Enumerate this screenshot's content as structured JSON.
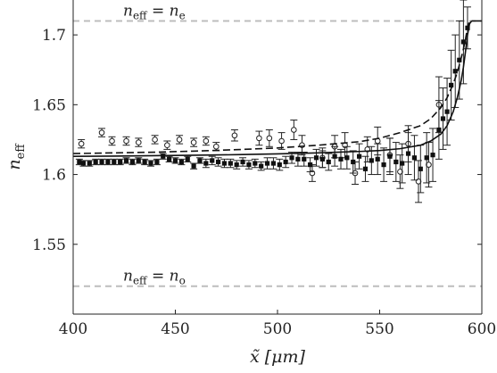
{
  "chart_data": {
    "type": "scatter",
    "title": "",
    "xlabel": "x̃ [μm]",
    "ylabel": "n_eff",
    "xlim": [
      400,
      600
    ],
    "ylim": [
      1.5,
      1.725
    ],
    "xticks": [
      "400",
      "450",
      "500",
      "550",
      "600"
    ],
    "yticks": [
      "1.55",
      "1.6",
      "1.65",
      "1.7"
    ],
    "grid": false,
    "annotations": [
      {
        "text_main": "n",
        "text_sub": "eff",
        "text_eq": " = ",
        "text_rhs": "n",
        "text_rhs_sub": "e",
        "y": 1.71
      },
      {
        "text_main": "n",
        "text_sub": "eff",
        "text_eq": " = ",
        "text_rhs": "n",
        "text_rhs_sub": "o",
        "y": 1.52
      }
    ],
    "reference_lines": [
      {
        "y": 1.71,
        "style": "dashed",
        "color": "#bdbdbd"
      },
      {
        "y": 1.52,
        "style": "dashed",
        "color": "#bdbdbd"
      }
    ],
    "series": [
      {
        "marker": "open-circle",
        "x": [
          404,
          414,
          419,
          426,
          432,
          440,
          446,
          452,
          459,
          465,
          470,
          479,
          491,
          496,
          502,
          508,
          512,
          517,
          522,
          528,
          533,
          538,
          544,
          549,
          555,
          560,
          564,
          569,
          574,
          579
        ],
        "y": [
          1.622,
          1.63,
          1.624,
          1.624,
          1.623,
          1.625,
          1.621,
          1.625,
          1.623,
          1.624,
          1.62,
          1.628,
          1.626,
          1.626,
          1.624,
          1.632,
          1.621,
          1.601,
          1.612,
          1.62,
          1.621,
          1.601,
          1.618,
          1.624,
          1.614,
          1.602,
          1.622,
          1.595,
          1.607,
          1.65
        ],
        "err": [
          0.003,
          0.003,
          0.003,
          0.003,
          0.003,
          0.003,
          0.003,
          0.003,
          0.003,
          0.003,
          0.003,
          0.004,
          0.005,
          0.006,
          0.006,
          0.007,
          0.007,
          0.006,
          0.007,
          0.008,
          0.009,
          0.008,
          0.009,
          0.01,
          0.012,
          0.012,
          0.013,
          0.015,
          0.016,
          0.02
        ]
      },
      {
        "marker": "filled-square",
        "x": [
          403,
          405,
          408,
          411,
          414,
          417,
          420,
          423,
          426,
          429,
          432,
          435,
          438,
          441,
          444,
          447,
          450,
          453,
          456,
          459,
          462,
          465,
          468,
          471,
          474,
          477,
          480,
          483,
          486,
          489,
          492,
          495,
          498,
          501,
          504,
          507,
          510,
          513,
          516,
          519,
          522,
          525,
          528,
          531,
          534,
          537,
          540,
          543,
          546,
          549,
          552,
          555,
          558,
          561,
          564,
          567,
          570,
          573,
          576,
          579,
          581,
          583,
          585,
          587,
          589,
          591,
          593
        ],
        "y": [
          1.609,
          1.608,
          1.608,
          1.609,
          1.609,
          1.609,
          1.609,
          1.609,
          1.61,
          1.609,
          1.61,
          1.609,
          1.608,
          1.609,
          1.613,
          1.611,
          1.61,
          1.609,
          1.611,
          1.606,
          1.61,
          1.608,
          1.61,
          1.609,
          1.608,
          1.608,
          1.607,
          1.609,
          1.607,
          1.608,
          1.606,
          1.608,
          1.608,
          1.607,
          1.609,
          1.612,
          1.611,
          1.611,
          1.607,
          1.612,
          1.611,
          1.609,
          1.613,
          1.611,
          1.612,
          1.609,
          1.613,
          1.604,
          1.61,
          1.611,
          1.607,
          1.613,
          1.609,
          1.608,
          1.615,
          1.612,
          1.604,
          1.612,
          1.614,
          1.632,
          1.64,
          1.645,
          1.664,
          1.674,
          1.682,
          1.695,
          1.705
        ],
        "err": [
          0.002,
          0.002,
          0.002,
          0.002,
          0.002,
          0.002,
          0.002,
          0.002,
          0.002,
          0.002,
          0.002,
          0.002,
          0.002,
          0.002,
          0.002,
          0.002,
          0.002,
          0.002,
          0.002,
          0.002,
          0.002,
          0.003,
          0.003,
          0.003,
          0.003,
          0.003,
          0.003,
          0.003,
          0.003,
          0.003,
          0.003,
          0.004,
          0.004,
          0.004,
          0.004,
          0.004,
          0.005,
          0.005,
          0.005,
          0.006,
          0.006,
          0.006,
          0.007,
          0.007,
          0.008,
          0.008,
          0.009,
          0.009,
          0.01,
          0.011,
          0.012,
          0.013,
          0.014,
          0.014,
          0.015,
          0.016,
          0.017,
          0.018,
          0.019,
          0.021,
          0.022,
          0.024,
          0.025,
          0.026,
          0.028,
          0.03,
          0.015
        ]
      },
      {
        "style": "solid",
        "x": [
          400,
          420,
          440,
          460,
          480,
          500,
          520,
          540,
          550,
          560,
          570,
          575,
          580,
          583,
          586,
          588,
          590,
          591,
          592,
          593,
          594,
          595
        ],
        "y": [
          1.613,
          1.6132,
          1.6135,
          1.6138,
          1.6142,
          1.6148,
          1.6155,
          1.6165,
          1.6172,
          1.6185,
          1.621,
          1.624,
          1.629,
          1.635,
          1.645,
          1.655,
          1.668,
          1.677,
          1.688,
          1.7,
          1.708,
          1.71
        ]
      },
      {
        "style": "dashed",
        "x": [
          400,
          420,
          440,
          460,
          480,
          500,
          520,
          540,
          550,
          560,
          570,
          575,
          580,
          583,
          586,
          588,
          590,
          591,
          592,
          593,
          594
        ],
        "y": [
          1.615,
          1.6155,
          1.616,
          1.6168,
          1.6178,
          1.619,
          1.621,
          1.6235,
          1.626,
          1.63,
          1.635,
          1.64,
          1.648,
          1.655,
          1.665,
          1.673,
          1.684,
          1.69,
          1.697,
          1.705,
          1.71
        ]
      },
      {
        "style": "solid",
        "x": [
          595,
          600
        ],
        "y": [
          1.71,
          1.71
        ]
      }
    ]
  }
}
